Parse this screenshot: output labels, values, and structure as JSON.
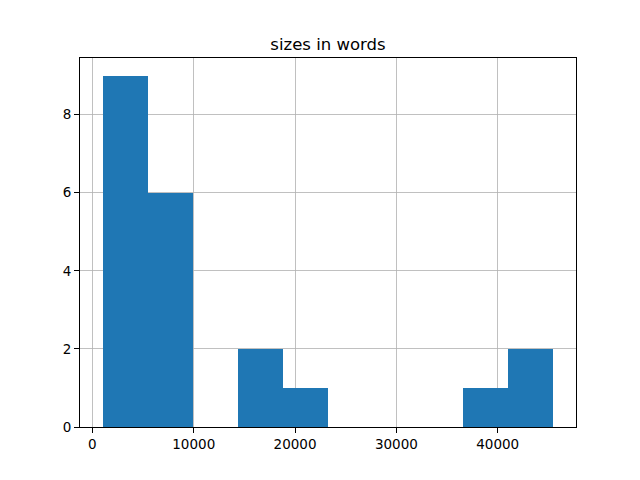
{
  "chart_data": {
    "type": "histogram",
    "title": "sizes in words",
    "bins": [
      1000,
      5450,
      9900,
      14350,
      18800,
      23250,
      27700,
      32150,
      36600,
      41050,
      45500
    ],
    "counts": [
      9,
      6,
      0,
      2,
      1,
      0,
      0,
      0,
      1,
      2
    ],
    "color": "#1f77b4",
    "xlim": [
      -1225,
      47725
    ],
    "xticks": [
      0,
      10000,
      20000,
      30000,
      40000
    ],
    "ylim": [
      0,
      9.45
    ],
    "yticks": [
      0,
      2,
      4,
      6,
      8
    ],
    "grid": true
  }
}
